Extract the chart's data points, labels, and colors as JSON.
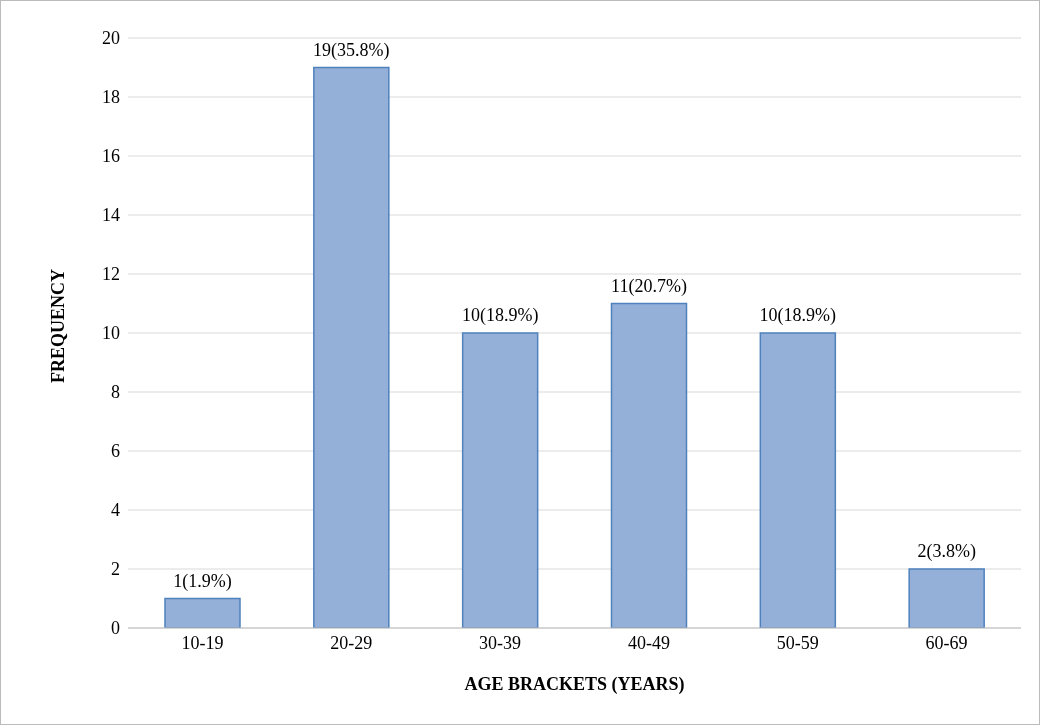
{
  "chart_data": {
    "type": "bar",
    "xlabel": "AGE BRACKETS (YEARS)",
    "ylabel": "FREQUENCY",
    "categories": [
      "10-19",
      "20-29",
      "30-39",
      "40-49",
      "50-59",
      "60-69"
    ],
    "values": [
      1,
      19,
      10,
      11,
      10,
      2
    ],
    "value_labels": [
      "1(1.9%)",
      "19(35.8%)",
      "10(18.9%)",
      "11(20.7%)",
      "10(18.9%)",
      "2(3.8%)"
    ],
    "color": "#95b0d8",
    "ylim": [
      0,
      20
    ],
    "yticks": [
      0,
      2,
      4,
      6,
      8,
      10,
      12,
      14,
      16,
      18,
      20
    ],
    "grid": "y"
  }
}
